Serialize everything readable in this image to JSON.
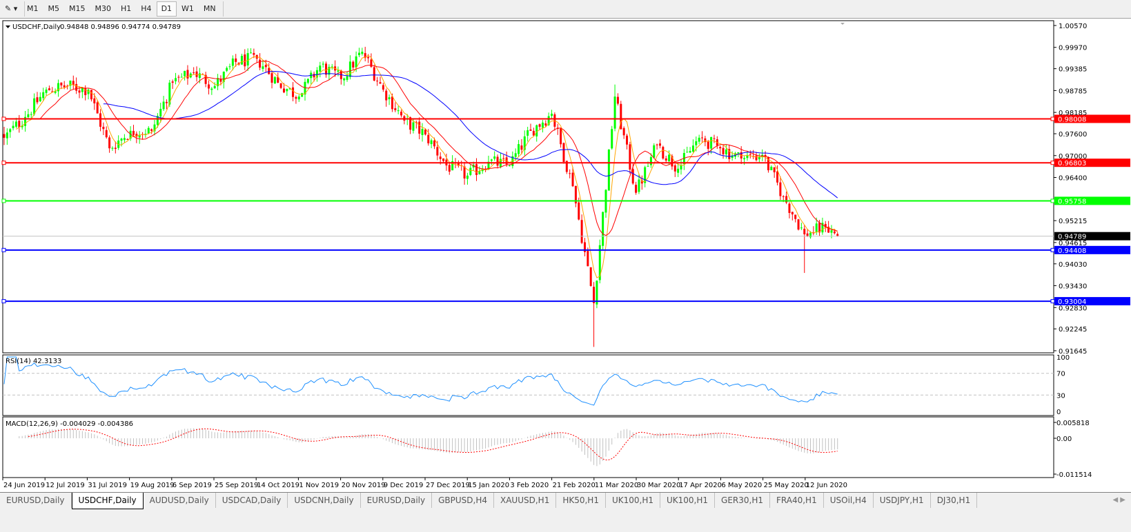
{
  "toolbar": {
    "timeframes": [
      "M1",
      "M5",
      "M15",
      "M30",
      "H1",
      "H4",
      "D1",
      "W1",
      "MN"
    ],
    "active_timeframe": "D1"
  },
  "chart": {
    "symbol_label": "USDCHF,Daily",
    "ohlc_label": "0.94848 0.94896 0.94774 0.94789",
    "current_price": "0.94789",
    "price_ticks": [
      "1.00570",
      "0.99970",
      "0.99385",
      "0.98785",
      "0.98185",
      "0.97600",
      "0.97000",
      "0.96400",
      "0.95215",
      "0.94615",
      "0.94030",
      "0.93430",
      "0.92830",
      "0.92245",
      "0.91645"
    ],
    "horizontal_lines": [
      {
        "price": "0.98008",
        "color": "#ff0000"
      },
      {
        "price": "0.96803",
        "color": "#ff0000"
      },
      {
        "price": "0.95758",
        "color": "#00ff00"
      },
      {
        "price": "0.94408",
        "color": "#0000ff"
      },
      {
        "price": "0.93004",
        "color": "#0000ff"
      }
    ],
    "colors": {
      "bull": "#00ff00",
      "bear": "#ff0000",
      "ma_fast": "#ffa500",
      "ma_mid": "#ff0000",
      "ma_slow": "#0000ff",
      "rsi": "#1e90ff",
      "macd_hist": "#c0c0c0",
      "macd_signal": "#ff0000"
    },
    "date_labels": [
      "24 Jun 2019",
      "12 Jul 2019",
      "31 Jul 2019",
      "19 Aug 2019",
      "6 Sep 2019",
      "25 Sep 2019",
      "14 Oct 2019",
      "1 Nov 2019",
      "20 Nov 2019",
      "9 Dec 2019",
      "27 Dec 2019",
      "15 Jan 2020",
      "3 Feb 2020",
      "21 Feb 2020",
      "11 Mar 2020",
      "30 Mar 2020",
      "17 Apr 2020",
      "6 May 2020",
      "25 May 2020",
      "12 Jun 2020"
    ]
  },
  "rsi": {
    "label": "RSI(14) 42.3133",
    "ticks": [
      "100",
      "70",
      "30",
      "0"
    ]
  },
  "macd": {
    "label": "MACD(12,26,9) -0.004029 -0.004386",
    "ticks": [
      "0.005818",
      "0.00",
      "-0.011514"
    ]
  },
  "chart_data": {
    "type": "candlestick",
    "symbol": "USDCHF",
    "timeframe": "Daily",
    "ylim": [
      0.91645,
      1.0057
    ],
    "close_path": [
      {
        "date": "24 Jun 2019",
        "close": 0.9749
      },
      {
        "date": "3 Jul 2019",
        "close": 0.9806
      },
      {
        "date": "12 Jul 2019",
        "close": 0.9881
      },
      {
        "date": "23 Jul 2019",
        "close": 0.9891
      },
      {
        "date": "31 Jul 2019",
        "close": 0.9881
      },
      {
        "date": "9 Aug 2019",
        "close": 0.972
      },
      {
        "date": "19 Aug 2019",
        "close": 0.9768
      },
      {
        "date": "28 Aug 2019",
        "close": 0.9768
      },
      {
        "date": "6 Sep 2019",
        "close": 0.99
      },
      {
        "date": "17 Sep 2019",
        "close": 0.9928
      },
      {
        "date": "25 Sep 2019",
        "close": 0.9891
      },
      {
        "date": "4 Oct 2019",
        "close": 0.9957
      },
      {
        "date": "14 Oct 2019",
        "close": 0.9966
      },
      {
        "date": "23 Oct 2019",
        "close": 0.99
      },
      {
        "date": "1 Nov 2019",
        "close": 0.9862
      },
      {
        "date": "12 Nov 2019",
        "close": 0.9947
      },
      {
        "date": "20 Nov 2019",
        "close": 0.991
      },
      {
        "date": "29 Nov 2019",
        "close": 0.9985
      },
      {
        "date": "9 Dec 2019",
        "close": 0.9881
      },
      {
        "date": "18 Dec 2019",
        "close": 0.9796
      },
      {
        "date": "27 Dec 2019",
        "close": 0.9758
      },
      {
        "date": "7 Jan 2020",
        "close": 0.9673
      },
      {
        "date": "15 Jan 2020",
        "close": 0.9645
      },
      {
        "date": "24 Jan 2020",
        "close": 0.9683
      },
      {
        "date": "3 Feb 2020",
        "close": 0.9673
      },
      {
        "date": "12 Feb 2020",
        "close": 0.9768
      },
      {
        "date": "21 Feb 2020",
        "close": 0.9815
      },
      {
        "date": "3 Mar 2020",
        "close": 0.9616
      },
      {
        "date": "11 Mar 2020",
        "close": 0.9295,
        "low": 0.9175
      },
      {
        "date": "20 Mar 2020",
        "close": 0.9862,
        "high": 0.9895
      },
      {
        "date": "30 Mar 2020",
        "close": 0.9598
      },
      {
        "date": "8 Apr 2020",
        "close": 0.973
      },
      {
        "date": "17 Apr 2020",
        "close": 0.9664
      },
      {
        "date": "28 Apr 2020",
        "close": 0.9749
      },
      {
        "date": "6 May 2020",
        "close": 0.972
      },
      {
        "date": "15 May 2020",
        "close": 0.9692
      },
      {
        "date": "25 May 2020",
        "close": 0.9702
      },
      {
        "date": "3 Jun 2020",
        "close": 0.9588
      },
      {
        "date": "12 Jun 2020",
        "close": 0.9484,
        "low": 0.9378
      },
      {
        "date": "19 Jun 2020",
        "close": 0.9503
      },
      {
        "date": "26 Jun 2020",
        "close": 0.94789,
        "open": 0.94848,
        "high": 0.94896,
        "low": 0.94774
      }
    ]
  },
  "tabs": {
    "items": [
      "EURUSD,Daily",
      "USDCHF,Daily",
      "AUDUSD,Daily",
      "USDCAD,Daily",
      "USDCNH,Daily",
      "EURUSD,Daily",
      "GBPUSD,H4",
      "XAUUSD,H1",
      "HK50,H1",
      "UK100,H1",
      "UK100,H1",
      "GER30,H1",
      "FRA40,H1",
      "USOil,H4",
      "USDJPY,H1",
      "DJ30,H1"
    ],
    "active": "USDCHF,Daily",
    "scroll_arrows": "◀ ▶"
  }
}
